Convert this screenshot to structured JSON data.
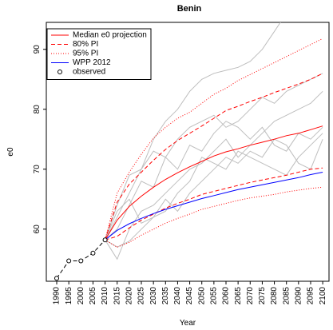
{
  "chart_data": {
    "type": "line",
    "title": "Benin",
    "xlabel": "Year",
    "ylabel": "e0",
    "x": [
      1990,
      1995,
      2000,
      2005,
      2010,
      2015,
      2020,
      2025,
      2030,
      2035,
      2040,
      2045,
      2050,
      2055,
      2060,
      2065,
      2070,
      2075,
      2080,
      2085,
      2090,
      2095,
      2100
    ],
    "xlim": [
      1985.7,
      2102.6
    ],
    "xticks": [
      1990,
      1995,
      2000,
      2005,
      2010,
      2015,
      2020,
      2025,
      2030,
      2035,
      2040,
      2045,
      2050,
      2055,
      2060,
      2065,
      2070,
      2075,
      2080,
      2085,
      2090,
      2095,
      2100
    ],
    "ylim": [
      51.3,
      94.5
    ],
    "yticks": [
      60,
      70,
      80,
      90
    ],
    "legend": "top-left",
    "trajectories": {
      "color": "#bebebe",
      "lines": [
        [
          null,
          null,
          null,
          null,
          58.2,
          62,
          66,
          70,
          75,
          78,
          80,
          83,
          85,
          86,
          86.5,
          87,
          88,
          90,
          93,
          96,
          98,
          99,
          99
        ],
        [
          null,
          null,
          null,
          null,
          58.2,
          55,
          60,
          63,
          64,
          66,
          68,
          70,
          71,
          73,
          75,
          72,
          74,
          76,
          78,
          79,
          80,
          81,
          83
        ],
        [
          null,
          null,
          null,
          null,
          58.2,
          60,
          64,
          68,
          67,
          72,
          70,
          74,
          73,
          76,
          78,
          77,
          75,
          77,
          74,
          73,
          76,
          75,
          77
        ],
        [
          null,
          null,
          null,
          null,
          58.2,
          63,
          65,
          61,
          62,
          63,
          66,
          68,
          72,
          71,
          70,
          73,
          72,
          71,
          70,
          69,
          72,
          74,
          76
        ],
        [
          null,
          null,
          null,
          null,
          58.2,
          64,
          69,
          70,
          73,
          72,
          75,
          77,
          78,
          79,
          77,
          78,
          80,
          82,
          81,
          83,
          84,
          85,
          86
        ],
        [
          null,
          null,
          null,
          null,
          58.2,
          57,
          58,
          60,
          62,
          65,
          63,
          66,
          68,
          70,
          72,
          71,
          73,
          72,
          75,
          74,
          71,
          70,
          75
        ]
      ]
    },
    "series": [
      {
        "name": "Median e0 projection",
        "color": "#ff0000",
        "dash": "none",
        "values": [
          null,
          null,
          null,
          null,
          58.2,
          61.5,
          63.8,
          65.5,
          67.0,
          68.3,
          69.4,
          70.4,
          71.3,
          72.2,
          72.9,
          73.4,
          74.0,
          74.5,
          75.0,
          75.6,
          76.0,
          76.6,
          77.2
        ]
      },
      {
        "name": "80% PI",
        "color": "#ff0000",
        "dash": "5,3",
        "values": [
          null,
          null,
          null,
          null,
          58.2,
          64.5,
          67.5,
          69.5,
          71.5,
          73.3,
          74.8,
          76.0,
          77.2,
          78.5,
          79.8,
          80.5,
          81.3,
          82.0,
          82.8,
          83.5,
          84.2,
          85.0,
          86.0
        ]
      },
      {
        "name": "80% PI",
        "color": "#ff0000",
        "dash": "5,3",
        "values": [
          null,
          null,
          null,
          null,
          58.2,
          58.8,
          60.2,
          61.5,
          62.5,
          63.5,
          64.3,
          65.0,
          65.8,
          66.3,
          66.8,
          67.3,
          67.8,
          68.2,
          68.6,
          69.0,
          69.5,
          70.0,
          70.2
        ]
      },
      {
        "name": "95% PI",
        "color": "#ff0000",
        "dash": "1,2",
        "values": [
          null,
          null,
          null,
          null,
          58.2,
          66,
          69.5,
          72.5,
          75.2,
          77,
          78.5,
          79.5,
          81,
          82.5,
          83.5,
          84.8,
          85.8,
          86.8,
          87.8,
          88.8,
          89.8,
          90.8,
          91.8
        ]
      },
      {
        "name": "95% PI",
        "color": "#ff0000",
        "dash": "1,2",
        "values": [
          null,
          null,
          null,
          null,
          58.2,
          57.0,
          57.8,
          59.0,
          60.0,
          61.0,
          61.8,
          62.5,
          63.3,
          63.8,
          64.3,
          64.8,
          65.2,
          65.5,
          65.8,
          66.2,
          66.5,
          66.8,
          67.0
        ]
      },
      {
        "name": "WPP 2012",
        "color": "#0000ff",
        "dash": "none",
        "values": [
          null,
          null,
          null,
          null,
          58.2,
          59.8,
          60.9,
          61.8,
          62.6,
          63.3,
          63.9,
          64.5,
          65.1,
          65.6,
          66.1,
          66.6,
          67.0,
          67.4,
          67.8,
          68.2,
          68.6,
          69.1,
          69.5
        ]
      },
      {
        "name": "observed",
        "color": "#000000",
        "dash": "5,3",
        "marker": "circle",
        "values": [
          51.8,
          54.7,
          54.7,
          56.0,
          58.2,
          null,
          null,
          null,
          null,
          null,
          null,
          null,
          null,
          null,
          null,
          null,
          null,
          null,
          null,
          null,
          null,
          null,
          null
        ]
      }
    ]
  }
}
